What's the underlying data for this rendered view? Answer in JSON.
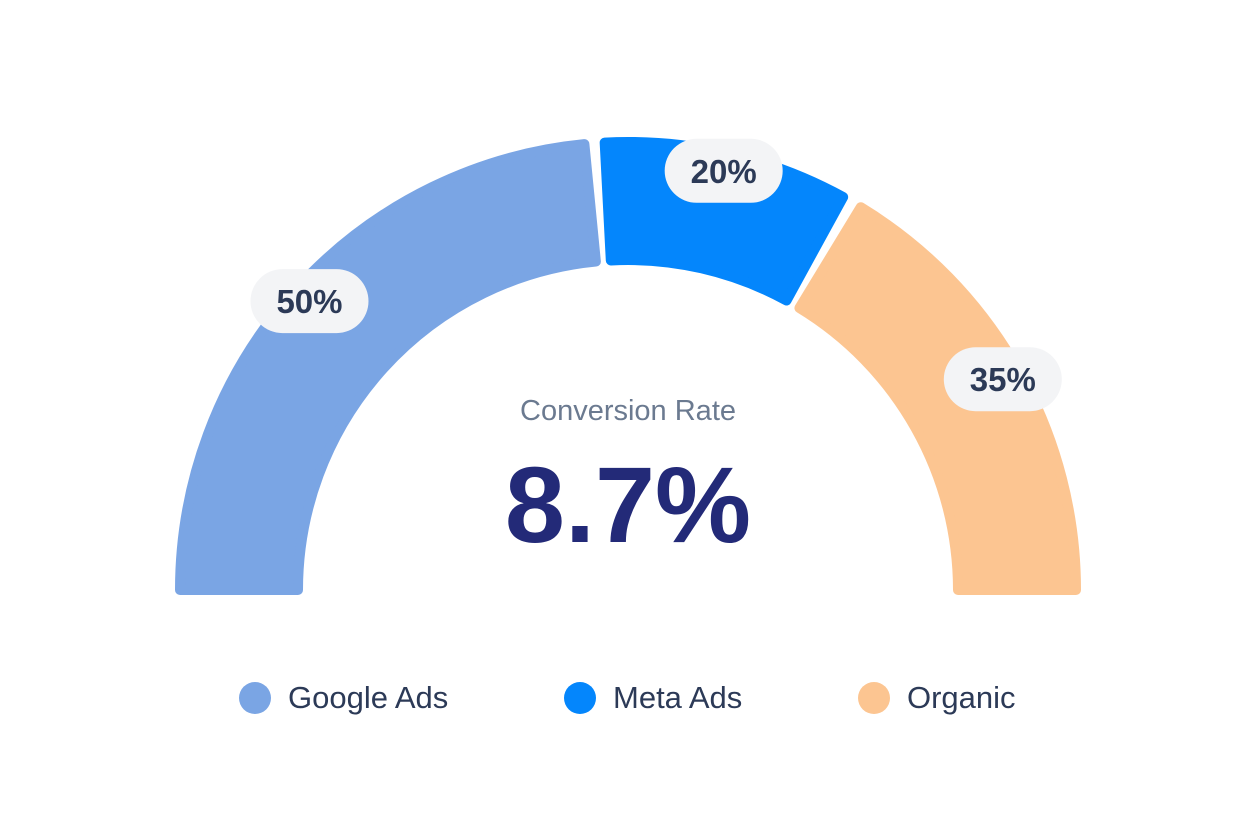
{
  "chart_data": {
    "type": "pie",
    "subtype": "semi-donut-gauge",
    "center_label": "Conversion Rate",
    "center_value": "8.7%",
    "categories": [
      "Google Ads",
      "Meta Ads",
      "Organic"
    ],
    "values": [
      50,
      20,
      35
    ],
    "value_labels": [
      "50%",
      "20%",
      "35%"
    ],
    "colors": [
      "#7aa5e4",
      "#0486fc",
      "#fcc591"
    ],
    "legend_position": "bottom"
  },
  "colors": {
    "center_label": "#6b7a90",
    "center_value": "#232a78",
    "badge_bg": "#f3f4f6",
    "badge_text": "#2c3a57"
  }
}
